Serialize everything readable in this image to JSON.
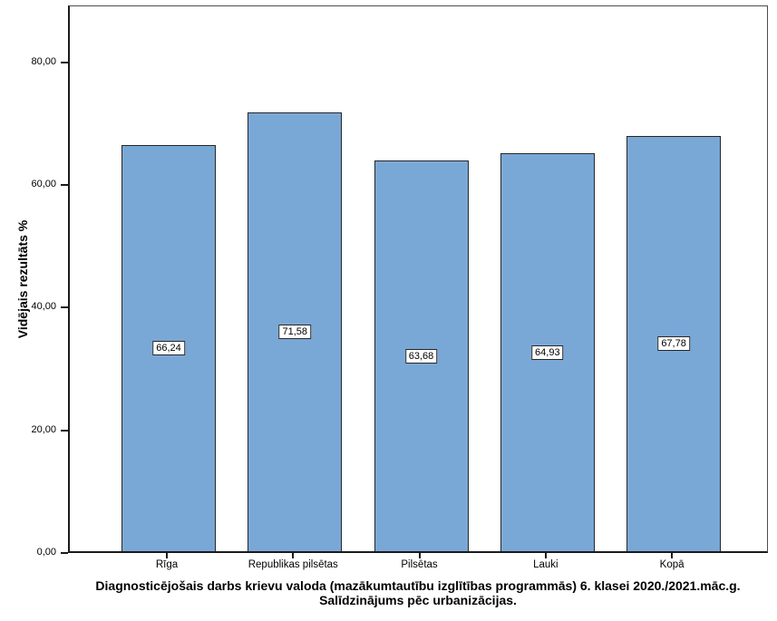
{
  "chart_data": {
    "type": "bar",
    "title": "Diagnosticējošais darbs krievu valoda (mazākumtautību izglītības programmās) 6. klasei 2020./2021.māc.g.",
    "subtitle": "Salīdzinājums pēc urbanizācijas.",
    "ylabel": "Vidējais rezultāts %",
    "xlabel": "",
    "categories": [
      "Rīga",
      "Republikas pilsētas",
      "Pilsētas",
      "Lauki",
      "Kopā"
    ],
    "values": [
      66.24,
      71.58,
      63.68,
      64.93,
      67.78
    ],
    "value_labels": [
      "66,24",
      "71,58",
      "63,68",
      "64,93",
      "67,78"
    ],
    "ylim": [
      0,
      89.3
    ],
    "yticks": [
      {
        "value": 0,
        "label": "0,00"
      },
      {
        "value": 20,
        "label": "20,00"
      },
      {
        "value": 40,
        "label": "40,00"
      },
      {
        "value": 60,
        "label": "60,00"
      },
      {
        "value": 80,
        "label": "80,00"
      }
    ],
    "grid": false,
    "legend": false,
    "bar_color": "#7AA8D6",
    "bar_border_color": "#262626",
    "axis_color": "#1a1a1a"
  }
}
